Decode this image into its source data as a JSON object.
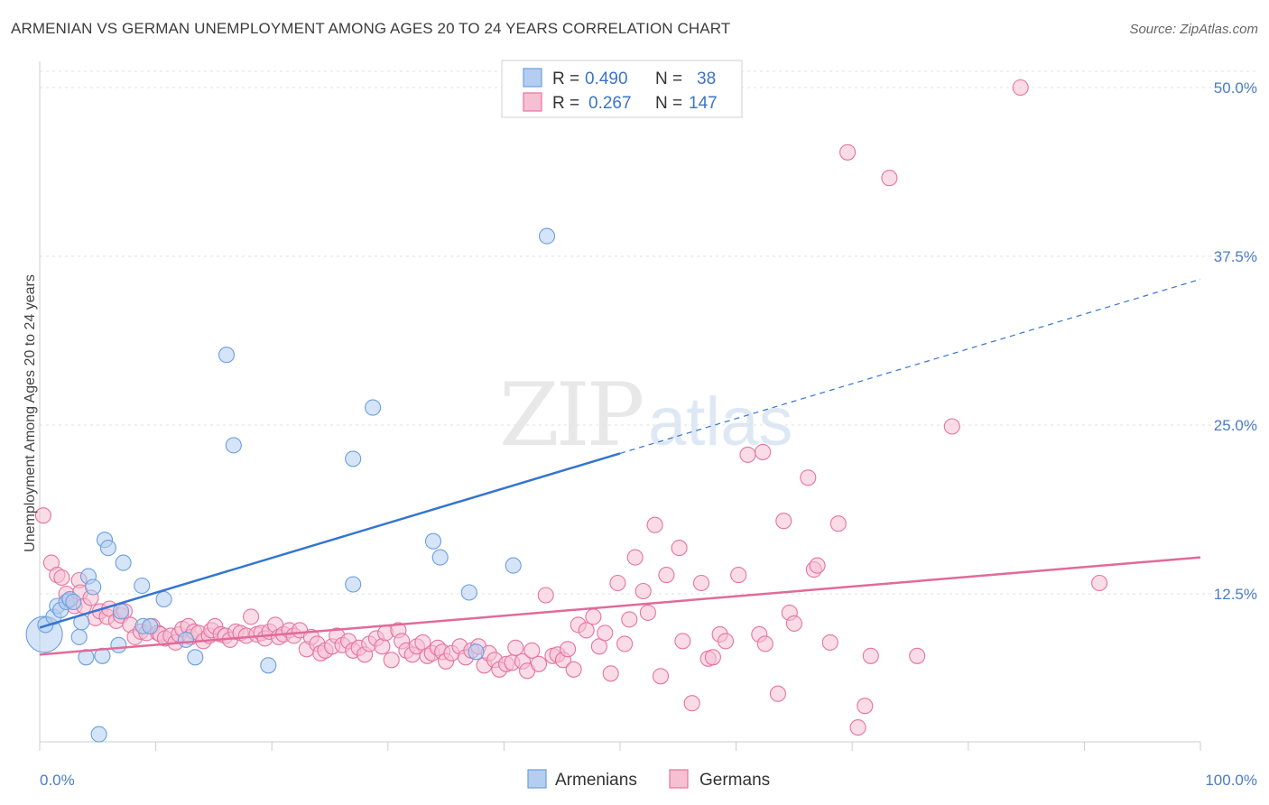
{
  "title": "ARMENIAN VS GERMAN UNEMPLOYMENT AMONG AGES 20 TO 24 YEARS CORRELATION CHART",
  "source": "Source: ZipAtlas.com",
  "watermark": {
    "zip": "ZIP",
    "atlas": "atlas"
  },
  "colors": {
    "blue": "#6a9fe0",
    "blue_fill": "#b5cdf1",
    "pink": "#e7739f",
    "pink_fill": "#f6bfd2",
    "blue_line": "#3575cf",
    "pink_line": "#e26a9a"
  },
  "legend": {
    "r_label": "R =",
    "n_label": "N =",
    "rows": [
      {
        "r": "0.490",
        "n": "38",
        "color": "blue"
      },
      {
        "r": "0.267",
        "n": "147",
        "color": "pink"
      }
    ]
  },
  "bottom_legend": [
    {
      "label": "Armenians",
      "color": "blue"
    },
    {
      "label": "Germans",
      "color": "pink"
    }
  ],
  "chart_data": {
    "type": "scatter",
    "xlabel": "",
    "ylabel": "Unemployment Among Ages 20 to 24 years",
    "xlim": [
      0,
      100
    ],
    "ylim": [
      0,
      52
    ],
    "x_tick_labels": [
      {
        "value": 0,
        "label": "0.0%"
      },
      {
        "value": 100,
        "label": "100.0%"
      }
    ],
    "y_tick_labels": [
      {
        "value": 12.5,
        "label": "12.5%"
      },
      {
        "value": 25,
        "label": "25.0%"
      },
      {
        "value": 37.5,
        "label": "37.5%"
      },
      {
        "value": 50,
        "label": "50.0%"
      }
    ],
    "series": [
      {
        "name": "Armenians",
        "color": "blue",
        "points": [
          [
            0.4,
            9.5
          ],
          [
            0.5,
            10.2
          ],
          [
            1.2,
            10.8
          ],
          [
            1.5,
            11.6
          ],
          [
            1.8,
            11.3
          ],
          [
            2.3,
            11.9
          ],
          [
            2.6,
            12.1
          ],
          [
            2.9,
            11.9
          ],
          [
            3.4,
            9.3
          ],
          [
            3.6,
            10.4
          ],
          [
            4.0,
            7.8
          ],
          [
            4.2,
            13.8
          ],
          [
            4.6,
            13.0
          ],
          [
            5.4,
            7.9
          ],
          [
            5.6,
            16.5
          ],
          [
            5.9,
            15.9
          ],
          [
            6.8,
            8.7
          ],
          [
            7.2,
            14.8
          ],
          [
            7.0,
            11.2
          ],
          [
            8.9,
            10.1
          ],
          [
            8.8,
            13.1
          ],
          [
            9.5,
            10.1
          ],
          [
            10.7,
            12.1
          ],
          [
            12.6,
            9.1
          ],
          [
            13.4,
            7.8
          ],
          [
            16.1,
            30.2
          ],
          [
            16.7,
            23.5
          ],
          [
            19.7,
            7.2
          ],
          [
            27.0,
            22.5
          ],
          [
            27.0,
            13.2
          ],
          [
            28.7,
            26.3
          ],
          [
            33.9,
            16.4
          ],
          [
            34.5,
            15.2
          ],
          [
            37.0,
            12.6
          ],
          [
            37.6,
            8.2
          ],
          [
            40.8,
            14.6
          ],
          [
            43.7,
            39.0
          ],
          [
            5.1,
            2.1
          ]
        ]
      },
      {
        "name": "Germans",
        "color": "pink",
        "points": [
          [
            0.3,
            18.3
          ],
          [
            1.0,
            14.8
          ],
          [
            1.5,
            13.9
          ],
          [
            1.9,
            13.7
          ],
          [
            2.3,
            12.5
          ],
          [
            2.5,
            12.0
          ],
          [
            3.0,
            11.6
          ],
          [
            3.4,
            13.5
          ],
          [
            3.5,
            12.6
          ],
          [
            3.8,
            11.6
          ],
          [
            4.4,
            12.2
          ],
          [
            4.8,
            10.7
          ],
          [
            5.2,
            11.2
          ],
          [
            5.8,
            10.8
          ],
          [
            6.0,
            11.4
          ],
          [
            6.6,
            10.5
          ],
          [
            7.0,
            10.9
          ],
          [
            7.3,
            11.2
          ],
          [
            7.8,
            10.2
          ],
          [
            8.2,
            9.3
          ],
          [
            8.7,
            9.7
          ],
          [
            9.2,
            9.6
          ],
          [
            9.7,
            10.1
          ],
          [
            10.2,
            9.6
          ],
          [
            10.4,
            9.5
          ],
          [
            10.8,
            9.2
          ],
          [
            11.3,
            9.4
          ],
          [
            11.7,
            8.9
          ],
          [
            12.0,
            9.5
          ],
          [
            12.3,
            9.9
          ],
          [
            12.8,
            10.1
          ],
          [
            13.0,
            9.3
          ],
          [
            13.3,
            9.7
          ],
          [
            13.7,
            9.6
          ],
          [
            14.1,
            9.0
          ],
          [
            14.6,
            9.4
          ],
          [
            14.8,
            9.8
          ],
          [
            15.1,
            10.1
          ],
          [
            15.6,
            9.5
          ],
          [
            16.0,
            9.4
          ],
          [
            16.4,
            9.1
          ],
          [
            16.9,
            9.7
          ],
          [
            17.3,
            9.6
          ],
          [
            17.8,
            9.4
          ],
          [
            18.2,
            10.8
          ],
          [
            18.7,
            9.5
          ],
          [
            19.1,
            9.6
          ],
          [
            19.4,
            9.2
          ],
          [
            19.8,
            9.7
          ],
          [
            20.3,
            10.2
          ],
          [
            20.6,
            9.3
          ],
          [
            21.0,
            9.5
          ],
          [
            21.5,
            9.8
          ],
          [
            21.9,
            9.4
          ],
          [
            22.4,
            9.8
          ],
          [
            23.0,
            8.4
          ],
          [
            23.4,
            9.3
          ],
          [
            23.9,
            8.8
          ],
          [
            24.2,
            8.1
          ],
          [
            24.6,
            8.3
          ],
          [
            25.2,
            8.6
          ],
          [
            25.6,
            9.4
          ],
          [
            26.1,
            8.7
          ],
          [
            26.6,
            9.0
          ],
          [
            27.0,
            8.3
          ],
          [
            27.5,
            8.5
          ],
          [
            28.0,
            8.0
          ],
          [
            28.4,
            8.8
          ],
          [
            29.0,
            9.2
          ],
          [
            29.5,
            8.6
          ],
          [
            29.8,
            9.6
          ],
          [
            30.3,
            7.6
          ],
          [
            30.9,
            9.8
          ],
          [
            31.2,
            9.0
          ],
          [
            31.6,
            8.3
          ],
          [
            32.1,
            8.0
          ],
          [
            32.5,
            8.6
          ],
          [
            33.0,
            8.9
          ],
          [
            33.4,
            7.9
          ],
          [
            33.8,
            8.1
          ],
          [
            34.3,
            8.5
          ],
          [
            34.7,
            8.2
          ],
          [
            35.0,
            7.5
          ],
          [
            35.5,
            8.1
          ],
          [
            36.2,
            8.6
          ],
          [
            36.7,
            7.8
          ],
          [
            37.2,
            8.3
          ],
          [
            37.8,
            8.6
          ],
          [
            38.3,
            7.2
          ],
          [
            38.7,
            8.1
          ],
          [
            39.2,
            7.6
          ],
          [
            39.6,
            6.9
          ],
          [
            40.2,
            7.3
          ],
          [
            40.7,
            7.4
          ],
          [
            41.0,
            8.5
          ],
          [
            41.6,
            7.5
          ],
          [
            42.0,
            6.8
          ],
          [
            42.4,
            8.3
          ],
          [
            43.0,
            7.3
          ],
          [
            43.6,
            12.4
          ],
          [
            44.2,
            7.9
          ],
          [
            44.6,
            8.0
          ],
          [
            45.1,
            7.6
          ],
          [
            45.5,
            8.4
          ],
          [
            46.0,
            6.9
          ],
          [
            46.4,
            10.2
          ],
          [
            47.1,
            9.8
          ],
          [
            47.7,
            10.8
          ],
          [
            48.2,
            8.6
          ],
          [
            48.7,
            9.6
          ],
          [
            49.2,
            6.6
          ],
          [
            49.8,
            13.3
          ],
          [
            50.4,
            8.8
          ],
          [
            50.8,
            10.6
          ],
          [
            51.3,
            15.2
          ],
          [
            52.0,
            12.7
          ],
          [
            52.4,
            11.1
          ],
          [
            53.0,
            17.6
          ],
          [
            53.5,
            6.4
          ],
          [
            54.0,
            13.9
          ],
          [
            55.1,
            15.9
          ],
          [
            55.4,
            9.0
          ],
          [
            56.2,
            4.4
          ],
          [
            57.0,
            13.3
          ],
          [
            57.6,
            7.7
          ],
          [
            58.0,
            7.8
          ],
          [
            58.6,
            9.5
          ],
          [
            59.1,
            9.0
          ],
          [
            60.2,
            13.9
          ],
          [
            61.0,
            22.8
          ],
          [
            62.3,
            23.0
          ],
          [
            62.0,
            9.5
          ],
          [
            62.5,
            8.8
          ],
          [
            63.6,
            5.1
          ],
          [
            64.1,
            17.9
          ],
          [
            64.6,
            11.1
          ],
          [
            65.0,
            10.3
          ],
          [
            66.2,
            21.1
          ],
          [
            66.7,
            14.3
          ],
          [
            67.0,
            14.6
          ],
          [
            68.1,
            8.9
          ],
          [
            68.8,
            17.7
          ],
          [
            69.6,
            45.2
          ],
          [
            70.5,
            2.6
          ],
          [
            71.1,
            4.2
          ],
          [
            71.6,
            7.9
          ],
          [
            73.2,
            43.3
          ],
          [
            75.6,
            7.9
          ],
          [
            78.6,
            24.9
          ],
          [
            84.5,
            50.0
          ],
          [
            91.3,
            13.3
          ]
        ]
      }
    ],
    "trend_lines": [
      {
        "series": "Armenians",
        "x_start": 0,
        "y_start": 10.0,
        "x_solid_end": 50,
        "y_solid_end": 22.9,
        "x_end": 100,
        "y_end": 35.8
      },
      {
        "series": "Germans",
        "x_start": 0,
        "y_start": 8.0,
        "x_end": 100,
        "y_end": 15.2
      }
    ],
    "grid": true,
    "legend_position": "top-center"
  }
}
